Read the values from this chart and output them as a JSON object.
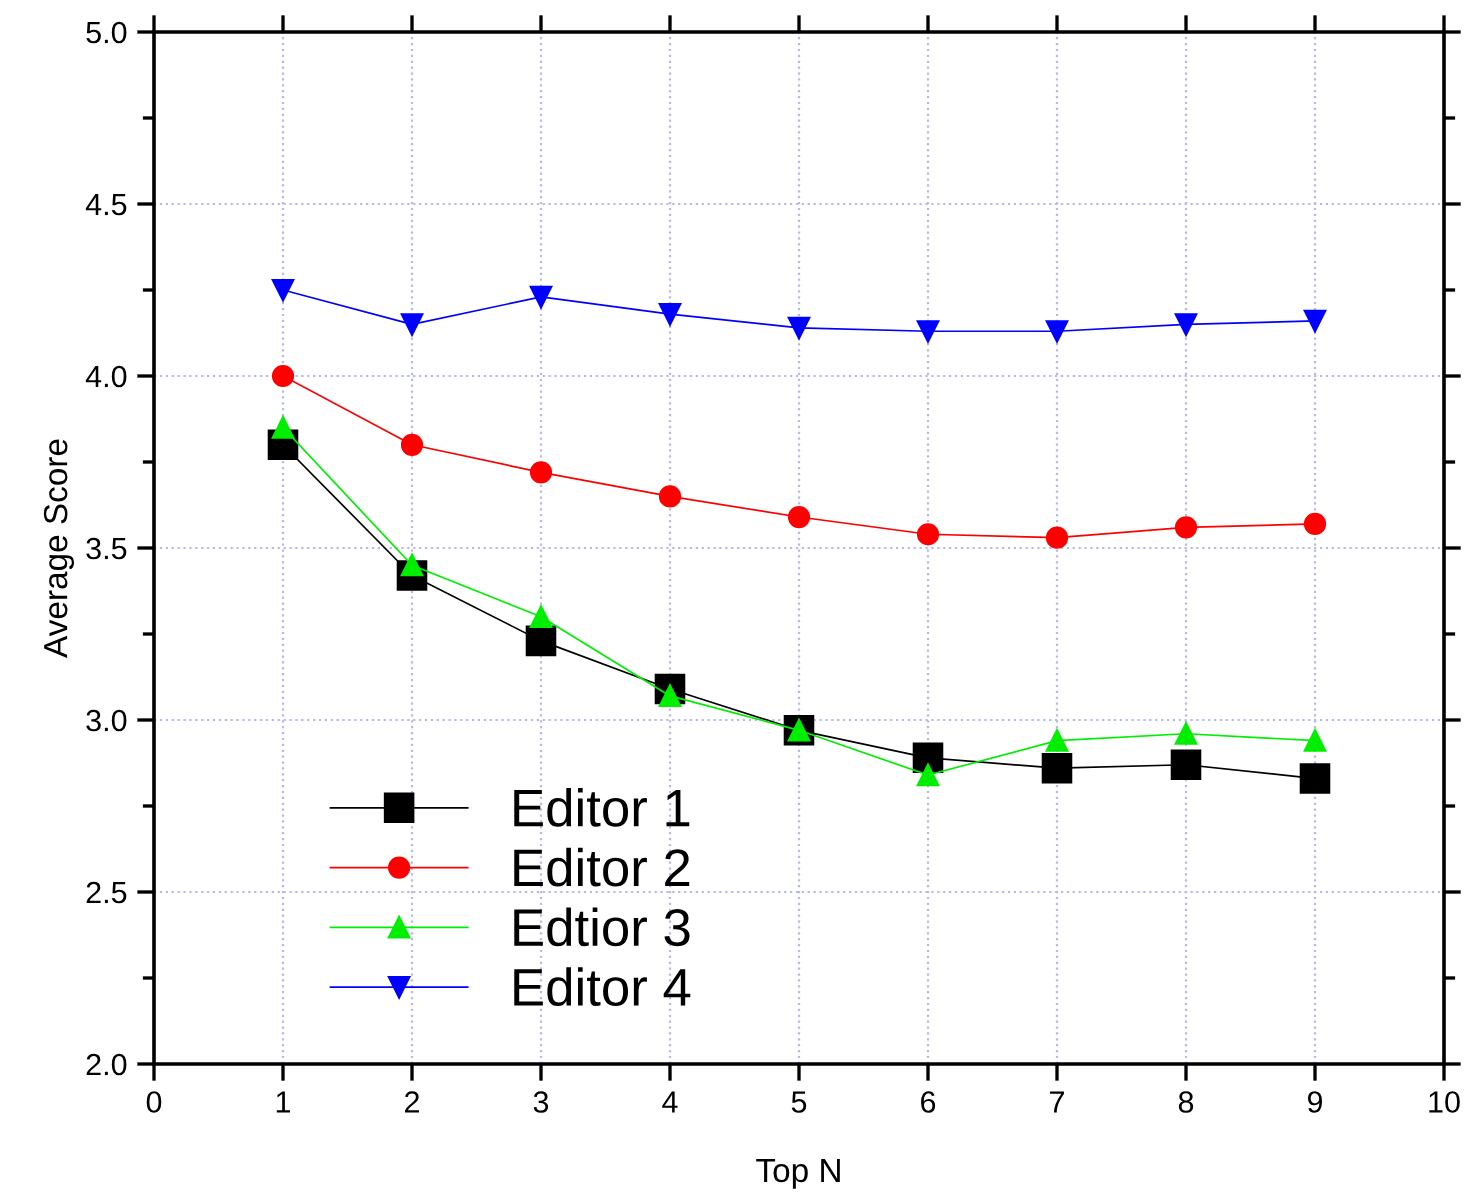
{
  "chart_data": {
    "type": "line",
    "xlabel": "Top N",
    "ylabel": "Average Score",
    "x": [
      1,
      2,
      3,
      4,
      5,
      6,
      7,
      8,
      9
    ],
    "series": [
      {
        "name": "Editor 1",
        "color": "#000000",
        "marker": "square",
        "values": [
          3.8,
          3.42,
          3.23,
          3.09,
          2.97,
          2.89,
          2.86,
          2.87,
          2.83
        ]
      },
      {
        "name": "Editor 2",
        "color": "#ff0000",
        "marker": "circle",
        "values": [
          4.0,
          3.8,
          3.72,
          3.65,
          3.59,
          3.54,
          3.53,
          3.56,
          3.57
        ]
      },
      {
        "name": "Edtior 3",
        "color": "#00ee00",
        "marker": "triangle",
        "values": [
          3.85,
          3.45,
          3.3,
          3.07,
          2.97,
          2.84,
          2.94,
          2.96,
          2.94
        ]
      },
      {
        "name": "Editor 4",
        "color": "#0000ff",
        "marker": "triangle_down",
        "values": [
          4.25,
          4.15,
          4.23,
          4.18,
          4.14,
          4.13,
          4.13,
          4.15,
          4.16
        ]
      }
    ],
    "xlim": [
      0,
      10
    ],
    "xticks": [
      0,
      1,
      2,
      3,
      4,
      5,
      6,
      7,
      8,
      9,
      10
    ],
    "ylim": [
      2.0,
      5.0
    ],
    "yticks": [
      {
        "value": 2.0,
        "label": "2.0"
      },
      {
        "value": 2.5,
        "label": "2.5"
      },
      {
        "value": 3.0,
        "label": "3.0"
      },
      {
        "value": 3.5,
        "label": "3.5"
      },
      {
        "value": 4.0,
        "label": "4.0"
      },
      {
        "value": 4.5,
        "label": "4.5"
      },
      {
        "value": 5.0,
        "label": "5.0"
      }
    ],
    "grid": true,
    "legend": "bottom left",
    "line_style": "solid"
  }
}
